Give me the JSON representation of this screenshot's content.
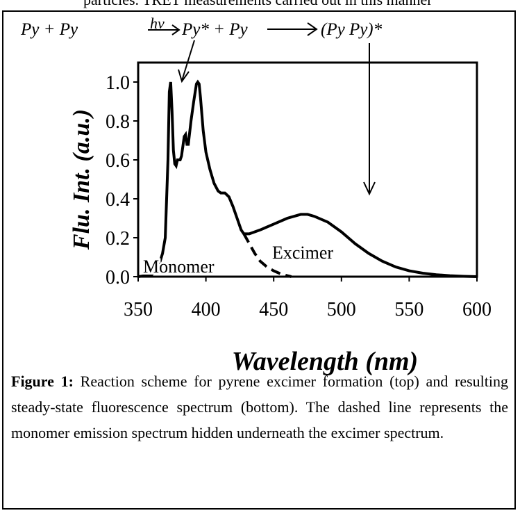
{
  "top_text": "particles. TRET measurements carried out in this manner",
  "scheme": [
    "Py + Py",
    "hν",
    "Py* + Py",
    "(Py Py)*"
  ],
  "chart_data": {
    "type": "line",
    "ylabel": "Flu. Int. (a.u.)",
    "xlabel": "Wavelength (nm)",
    "xlim": [
      350,
      600
    ],
    "ylim": [
      0,
      1.1
    ],
    "xticks": [
      350,
      400,
      450,
      500,
      550,
      600
    ],
    "yticks": [
      {
        "value": 0,
        "label": "0.0"
      },
      0.2,
      0.4,
      0.6,
      0.8,
      {
        "value": 1,
        "label": "1.0"
      }
    ],
    "series": [
      {
        "name": "Excimer",
        "color": "#000000",
        "dash": false,
        "x": [
          350,
          360,
          365,
          368,
          370,
          372,
          373,
          374,
          375,
          376,
          377,
          378,
          379,
          380,
          381,
          382,
          384,
          385,
          386,
          387,
          389,
          391,
          393,
          394,
          395,
          396,
          398,
          400,
          403,
          406,
          409,
          411,
          414,
          417,
          420,
          423,
          426,
          428,
          432,
          440,
          450,
          460,
          470,
          475,
          480,
          490,
          500,
          510,
          520,
          530,
          540,
          550,
          560,
          570,
          580,
          590,
          600
        ],
        "values": [
          0,
          0.01,
          0.05,
          0.12,
          0.2,
          0.6,
          0.95,
          1.0,
          0.85,
          0.65,
          0.58,
          0.57,
          0.6,
          0.6,
          0.6,
          0.62,
          0.72,
          0.73,
          0.68,
          0.68,
          0.8,
          0.9,
          0.99,
          1.0,
          0.99,
          0.92,
          0.75,
          0.64,
          0.55,
          0.48,
          0.44,
          0.43,
          0.43,
          0.41,
          0.36,
          0.3,
          0.24,
          0.22,
          0.22,
          0.24,
          0.27,
          0.3,
          0.32,
          0.32,
          0.31,
          0.28,
          0.23,
          0.17,
          0.12,
          0.08,
          0.05,
          0.03,
          0.018,
          0.01,
          0.005,
          0.002,
          0
        ]
      },
      {
        "name": "Monomer",
        "color": "#000000",
        "dash": true,
        "x": [
          428,
          432,
          436,
          440,
          445,
          450,
          455,
          460,
          463
        ],
        "values": [
          0.22,
          0.17,
          0.12,
          0.08,
          0.05,
          0.03,
          0.015,
          0.005,
          0
        ]
      }
    ]
  },
  "caption": {
    "label": "Figure 1:",
    "text": "Reaction scheme for pyrene excimer formation (top) and resulting steady-state fluorescence spectrum (bottom).  The dashed line represents the monomer emission spectrum hidden underneath the excimer spectrum."
  }
}
